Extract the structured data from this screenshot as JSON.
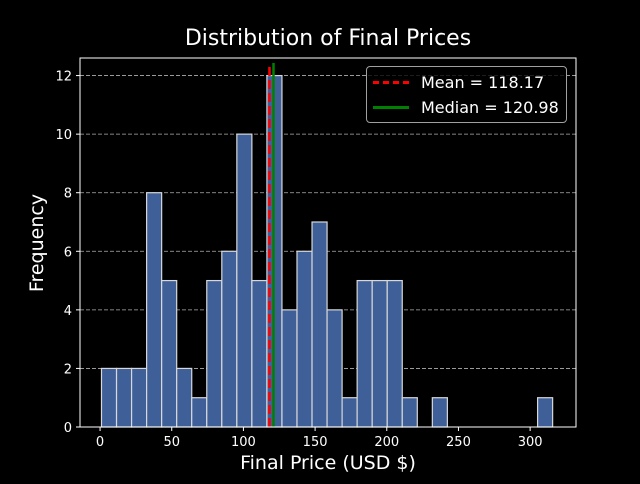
{
  "chart_data": {
    "type": "bar",
    "subtype": "histogram",
    "title": "Distribution of Final Prices",
    "xlabel": "Final Price (USD $)",
    "ylabel": "Frequency",
    "xlim": [
      -14,
      332
    ],
    "ylim": [
      0,
      12.6
    ],
    "xticks": [
      0,
      50,
      100,
      150,
      200,
      250,
      300
    ],
    "yticks": [
      0,
      2,
      4,
      6,
      8,
      10,
      12
    ],
    "grid": {
      "axis": "y",
      "style": "dashed",
      "color": "#b0b0b0"
    },
    "bin_start": 1.0,
    "bin_width": 10.49,
    "bins": 30,
    "values": [
      2,
      2,
      2,
      8,
      5,
      2,
      1,
      5,
      6,
      10,
      5,
      12,
      4,
      6,
      7,
      4,
      1,
      5,
      5,
      5,
      1,
      0,
      1,
      0,
      0,
      0,
      0,
      0,
      0,
      1
    ],
    "bar_color": "#3f5f99",
    "bar_edge_color": "#d8d8d8",
    "reference_lines": [
      {
        "name": "Mean",
        "label": "Mean = 118.17",
        "x": 118.17,
        "color": "#ff0000",
        "style": "dashed"
      },
      {
        "name": "Median",
        "label": "Median = 120.98",
        "x": 120.98,
        "color": "#008000",
        "style": "solid"
      }
    ],
    "legend_position": "upper right",
    "background": "#000000"
  },
  "legend": {
    "mean_label": "Mean = 118.17",
    "median_label": "Median = 120.98"
  }
}
